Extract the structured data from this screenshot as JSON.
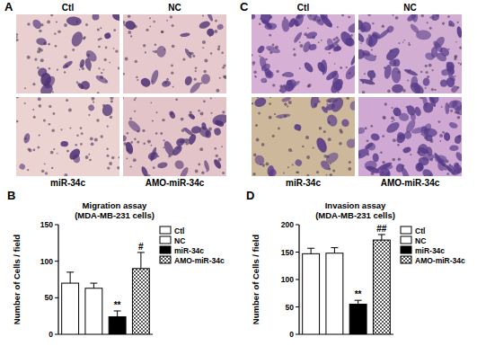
{
  "chart_data": [
    {
      "type": "bar",
      "panel_label": "B",
      "title": "Migration assay",
      "subtitle": "(MDA-MB-231 cells)",
      "y_label": "Number of Cells / field",
      "categories": [
        "Ctl",
        "NC",
        "miR-34c",
        "AMO-miR-34c"
      ],
      "values": [
        70,
        63,
        24,
        90
      ],
      "errors": [
        15,
        7,
        8,
        22
      ],
      "colors": [
        "#ffffff",
        "#ffffff",
        "#000000",
        "#555555"
      ],
      "significance": [
        null,
        null,
        "**",
        "#"
      ],
      "ylim": [
        0,
        150
      ],
      "yticks": [
        0,
        50,
        100,
        150
      ],
      "legend": "right"
    },
    {
      "type": "bar",
      "panel_label": "D",
      "title": "Invasion assay",
      "subtitle": "(MDA-MB-231 cells)",
      "y_label": "Number of Cells / field",
      "categories": [
        "Ctl",
        "NC",
        "miR-34c",
        "AMO-miR-34c"
      ],
      "values": [
        147,
        148,
        55,
        172
      ],
      "errors": [
        10,
        10,
        7,
        10
      ],
      "colors": [
        "#ffffff",
        "#ffffff",
        "#000000",
        "#555555"
      ],
      "significance": [
        null,
        null,
        "**",
        "##"
      ],
      "ylim": [
        0,
        200
      ],
      "yticks": [
        0,
        50,
        100,
        150,
        200
      ],
      "legend": "right"
    }
  ],
  "image_panels": [
    {
      "panel_label": "A",
      "labels": [
        "Ctl",
        "NC",
        "miR-34c",
        "AMO-miR-34c"
      ]
    },
    {
      "panel_label": "C",
      "labels": [
        "Ctl",
        "NC",
        "miR-34c",
        "AMO-miR-34c"
      ]
    }
  ]
}
